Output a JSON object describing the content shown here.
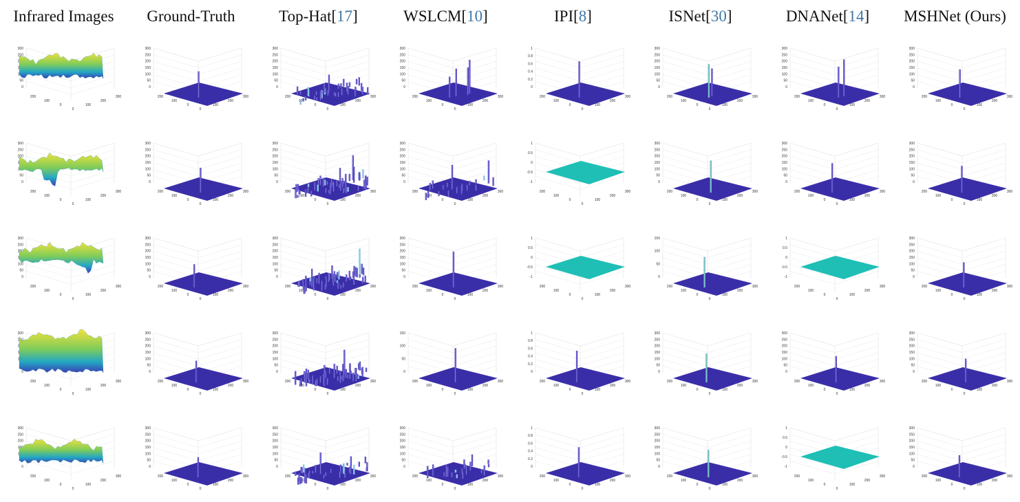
{
  "figure": {
    "headers": [
      {
        "text": "Infrared Images",
        "cite": ""
      },
      {
        "text": "Ground-Truth",
        "cite": ""
      },
      {
        "text": "Top-Hat[",
        "cite": "17",
        "close": "]"
      },
      {
        "text": "WSLCM[",
        "cite": "10",
        "close": "]"
      },
      {
        "text": "IPI[",
        "cite": "8",
        "close": "]"
      },
      {
        "text": "ISNet[",
        "cite": "30",
        "close": "]"
      },
      {
        "text": "DNANet[",
        "cite": "14",
        "close": "]"
      },
      {
        "text": "MSHNet (Ours)",
        "cite": ""
      }
    ],
    "colors": {
      "plane": "#3a2ea8",
      "flat": "#1fbfb5",
      "cite": "#3f77a8",
      "grid": "#e2e2e2",
      "axis_text": "#333333"
    },
    "axis_labels": {
      "z_standard": [
        "300",
        "250",
        "200",
        "150",
        "100",
        "50",
        "0"
      ],
      "z_small": [
        "150",
        "100",
        "50",
        "0"
      ],
      "z_unit": [
        "1",
        "0.8",
        "0.6",
        "0.4",
        "0.2",
        "0"
      ],
      "z_signed": [
        "1",
        "0.5",
        "0",
        "-0.5",
        "-1"
      ],
      "x": [
        "0",
        "100",
        "200",
        "300"
      ],
      "y": [
        "300",
        "200",
        "100",
        "0"
      ]
    },
    "rows": [
      {
        "infrared": "rough",
        "gt": [
          1
        ],
        "tophat": "rough",
        "wslcm": [
          1,
          2,
          3,
          2
        ],
        "ipi": [
          1
        ],
        "isnet": [
          1,
          2
        ],
        "dnanet": [
          1,
          2
        ],
        "mshnet": [
          1
        ]
      },
      {
        "infrared": "basin",
        "gt": [
          2
        ],
        "tophat": "dense",
        "wslcm": "dense",
        "ipi": "flat",
        "isnet": [
          2
        ],
        "dnanet": [
          1
        ],
        "mshnet": [
          2
        ]
      },
      {
        "infrared": "drop",
        "gt": [
          1
        ],
        "tophat": "dense",
        "wslcm": [
          3
        ],
        "ipi": "flat",
        "isnet": [
          1
        ],
        "dnanet": "flat",
        "mshnet": [
          1
        ]
      },
      {
        "infrared": "mount",
        "gt": [
          1
        ],
        "tophat": "dense",
        "wslcm": [
          2
        ],
        "ipi": [
          4
        ],
        "isnet": [
          1
        ],
        "dnanet": [
          2
        ],
        "mshnet": [
          1
        ]
      },
      {
        "infrared": "low",
        "gt": [
          1
        ],
        "tophat": "rough",
        "wslcm": "dense",
        "ipi": [
          4
        ],
        "isnet": [
          2
        ],
        "dnanet": "flat",
        "mshnet": [
          1
        ]
      }
    ]
  }
}
